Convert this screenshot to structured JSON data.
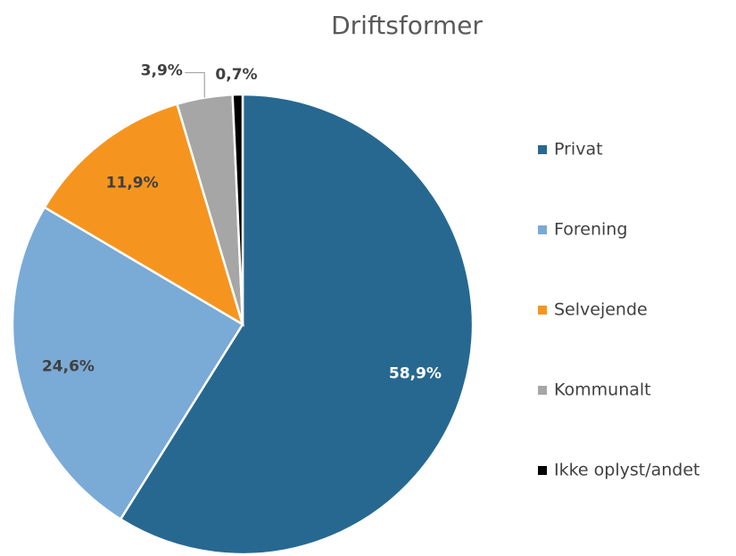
{
  "chart_data": {
    "type": "pie",
    "title": "Driftsformer",
    "categories": [
      "Privat",
      "Forening",
      "Selvejende",
      "Kommunalt",
      "Ikke oplyst/andet"
    ],
    "values": [
      58.9,
      24.6,
      11.9,
      3.9,
      0.7
    ],
    "value_labels": [
      "58,9%",
      "24,6%",
      "11,9%",
      "3,9%",
      "0,7%"
    ],
    "colors": [
      "#276891",
      "#7aaad6",
      "#f5951f",
      "#a6a6a6",
      "#000000"
    ],
    "legend": "right"
  }
}
